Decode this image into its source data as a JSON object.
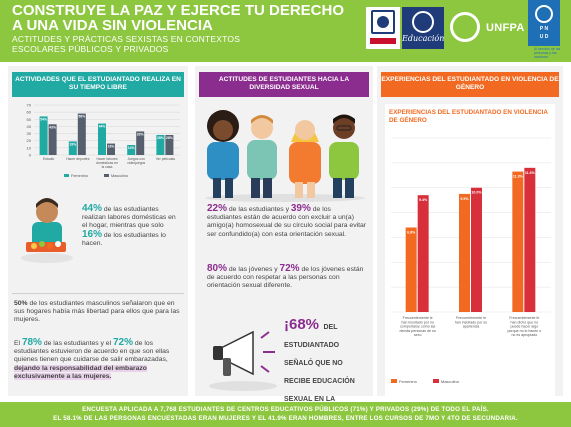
{
  "header": {
    "title": "CONSTRUYE LA PAZ Y EJERCE TU DERECHO A UNA VIDA SIN VIOLENCIA",
    "subtitle": "ACTITUDES Y PRÁCTICAS SEXISTAS EN CONTEXTOS ESCOLARES PÚBLICOS Y PRIVADOS",
    "logo_education": "Educación",
    "logo_unfpa": "UNFPA",
    "logo_undp": "PNUD",
    "logo_undp_sub": "Al servicio de las personas y las naciones"
  },
  "panel1": {
    "title": "ACTIVIDADES QUE EL ESTUDIANTADO REALIZA EN SU TIEMPO LIBRE",
    "color": "#21a9a4",
    "chart_data": {
      "type": "bar",
      "categories": [
        "Estudio",
        "Hacer deportes",
        "Hacer labores domésticas en la casa",
        "Juegos con videojuegos",
        "Ver películas"
      ],
      "series": [
        {
          "name": "Femenino",
          "values": [
            54,
            19,
            44,
            14,
            28
          ]
        },
        {
          "name": "Masculino",
          "values": [
            43,
            58,
            16,
            33,
            28
          ]
        }
      ],
      "ylim": [
        0,
        70
      ],
      "yticks": [
        "0",
        "10",
        "20",
        "30",
        "40",
        "50",
        "60",
        "70"
      ],
      "colors": [
        "#21a9a4",
        "#555f6e"
      ]
    },
    "fact1": {
      "pre": "44%",
      "a": " de las estudiantes realizan labores domésticas en el hogar, mientras que solo ",
      "b": "16%",
      "c": " de los estudiantes lo hacen."
    },
    "fact2": {
      "pre": "50%",
      "a": " de los estudiantes masculinos señalaron que en sus hogares había más libertad para ellos que para las mujeres."
    },
    "fact3": {
      "pre": "El ",
      "p1": "78%",
      "a": " de las estudiantes y el ",
      "p2": "72%",
      "b": " de los estudiantes estuvieron de acuerdo en que son ellas quienes tienen que cuidarse de salir embarazadas, ",
      "c": "dejando la responsabilidad del embarazo exclusivamente a las mujeres."
    }
  },
  "panel2": {
    "title": "ACTITUDES DE ESTUDIANTES HACIA LA DIVERSIDAD SEXUAL",
    "color": "#8b2d8f",
    "fact1": {
      "p1": "22%",
      "a": " de las estudiantes y ",
      "p2": "39%",
      "b": " de los estudiantes están de acuerdo con excluir a un(a) amigo(a) homosexual de su círculo social para evitar ser confundido(a) con esta orientación sexual."
    },
    "fact2": {
      "p1": "80%",
      "a": " de las jóvenes y ",
      "p2": "72%",
      "b": " de los jóvenes están de acuerdo con respetar a las personas con orientación sexual diferente."
    },
    "callout": {
      "pct": "¡68%",
      "text": "DEL ESTUDIANTADO SEÑALÓ QUE NO RECIBE EDUCACIÓN SEXUAL EN LA ESCUELA!"
    }
  },
  "panel3": {
    "title": "EXPERIENCIAS DEL ESTUDIANTADO EN VIOLENCIA DE GÉNERO",
    "color": "#f26a21",
    "chart_data": {
      "type": "bar",
      "title": "EXPERIENCIAS DEL ESTUDIANTADO EN VIOLENCIA DE GÉNERO",
      "categories": [
        "Frecuentemente le han insultado por no comportarse como las demás personas de su sexo",
        "Frecuentemente le han insultado por su apariencia",
        "Frecuentemente le han dicho que no puede hacer algo porque no lo hacen o no es apropiado"
      ],
      "series": [
        {
          "name": "Femenino",
          "values": [
            6.8,
            9.5,
            11.3
          ]
        },
        {
          "name": "Masculino",
          "values": [
            9.4,
            10.0,
            11.6
          ]
        }
      ],
      "labels": [
        [
          "6.8%",
          "9.4%"
        ],
        [
          "9.5%",
          "10.0%"
        ],
        [
          "11.3%",
          "11.6%"
        ]
      ],
      "ylim": [
        0,
        14
      ],
      "colors": [
        "#f26a21",
        "#d7303b"
      ]
    }
  },
  "footer": {
    "line1": "ENCUESTA APLICADA A 7,768 ESTUDIANTES DE CENTROS EDUCATIVOS PÚBLICOS (71%) Y PRIVADOS (29%) DE TODO EL PAÍS.",
    "line2": "EL 58.1% DE LAS PERSONAS ENCUESTADAS ERAN MUJERES Y EL 41.9% ERAN HOMBRES, ENTRE LOS CURSOS DE 7MO Y 4TO DE SECUNDARIA."
  }
}
